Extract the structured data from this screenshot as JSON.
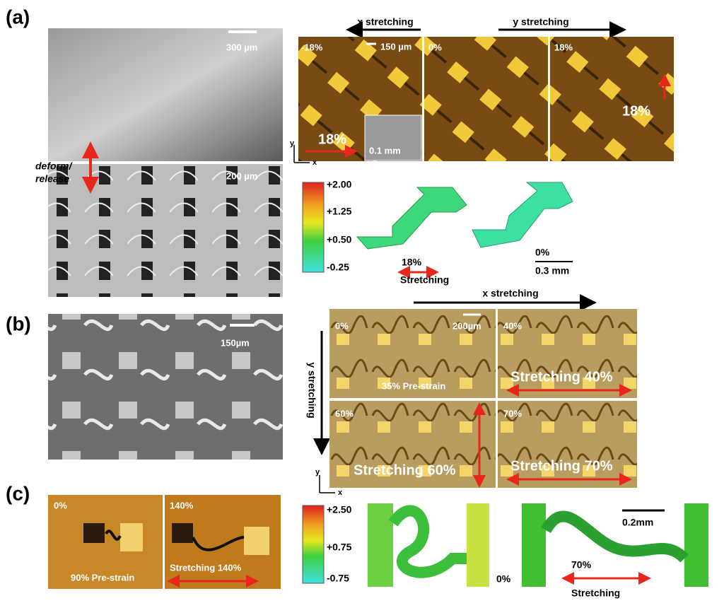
{
  "panel_a": {
    "label": "(a)",
    "sem_top_scale": "300 µm",
    "deform_release": [
      "deform/",
      "release"
    ],
    "sem_bottom_scale": "200 µm",
    "x_stretching": "x stretching",
    "y_stretching": "y stretching",
    "micrographs": [
      {
        "strain": "-18%",
        "scale": "150 µm",
        "big_label": "18%",
        "inset_scale": "0.1 mm"
      },
      {
        "strain": "0%"
      },
      {
        "strain": "18%",
        "big_label": "18%"
      }
    ],
    "axes": {
      "y": "y",
      "x": "x"
    },
    "colorbar": [
      "+2.00",
      "+1.25",
      "+0.50",
      "-0.25"
    ],
    "fem_strain": "18%",
    "fem_stretching": "Stretching",
    "fem_rest": "0%",
    "fem_scale": "0.3 mm"
  },
  "panel_b": {
    "label": "(b)",
    "sem_scale": "150µm",
    "x_stretching": "x stretching",
    "y_stretching": "y stretching",
    "micrographs": [
      {
        "strain": "0%",
        "scale": "200µm",
        "caption": "35% Pre-strain"
      },
      {
        "strain": "40%",
        "caption": "Stretching 40%"
      },
      {
        "strain": "60%",
        "caption": "Stretching 60%"
      },
      {
        "strain": "70%",
        "caption": "Stretching 70%"
      }
    ],
    "axes": {
      "y": "y",
      "x": "x"
    }
  },
  "panel_c": {
    "label": "(c)",
    "micrographs": [
      {
        "strain": "0%",
        "caption": "90% Pre-strain"
      },
      {
        "strain": "140%",
        "caption": "Stretching 140%"
      }
    ],
    "colorbar": [
      "+2.50",
      "+0.75",
      "-0.75"
    ],
    "fem_rest": "0%",
    "fem_scale": "0.2mm",
    "fem_strain": "70%",
    "fem_stretching": "Stretching"
  }
}
